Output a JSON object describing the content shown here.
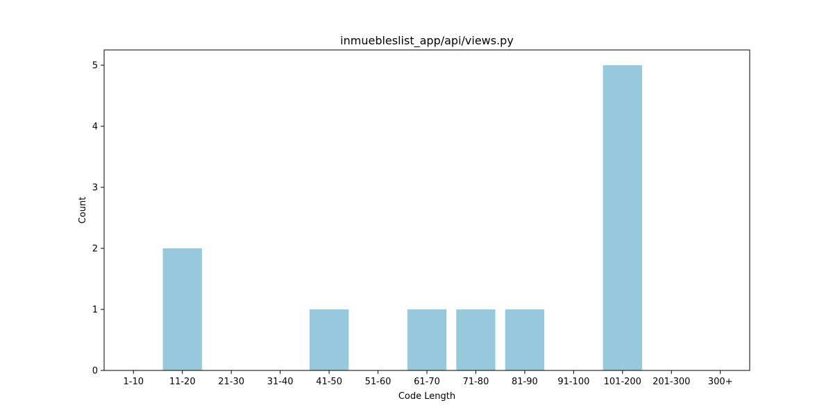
{
  "chart_data": {
    "type": "bar",
    "title": "inmuebleslist_app/api/views.py",
    "xlabel": "Code Length",
    "ylabel": "Count",
    "categories": [
      "1-10",
      "11-20",
      "21-30",
      "31-40",
      "41-50",
      "51-60",
      "61-70",
      "71-80",
      "81-90",
      "91-100",
      "101-200",
      "201-300",
      "300+"
    ],
    "values": [
      0,
      2,
      0,
      0,
      1,
      0,
      1,
      1,
      1,
      0,
      5,
      0,
      0
    ],
    "ylim": [
      0,
      5.25
    ],
    "yticks": [
      0,
      1,
      2,
      3,
      4,
      5
    ],
    "bar_color": "#96c9dc",
    "grid": false,
    "legend": "none"
  }
}
